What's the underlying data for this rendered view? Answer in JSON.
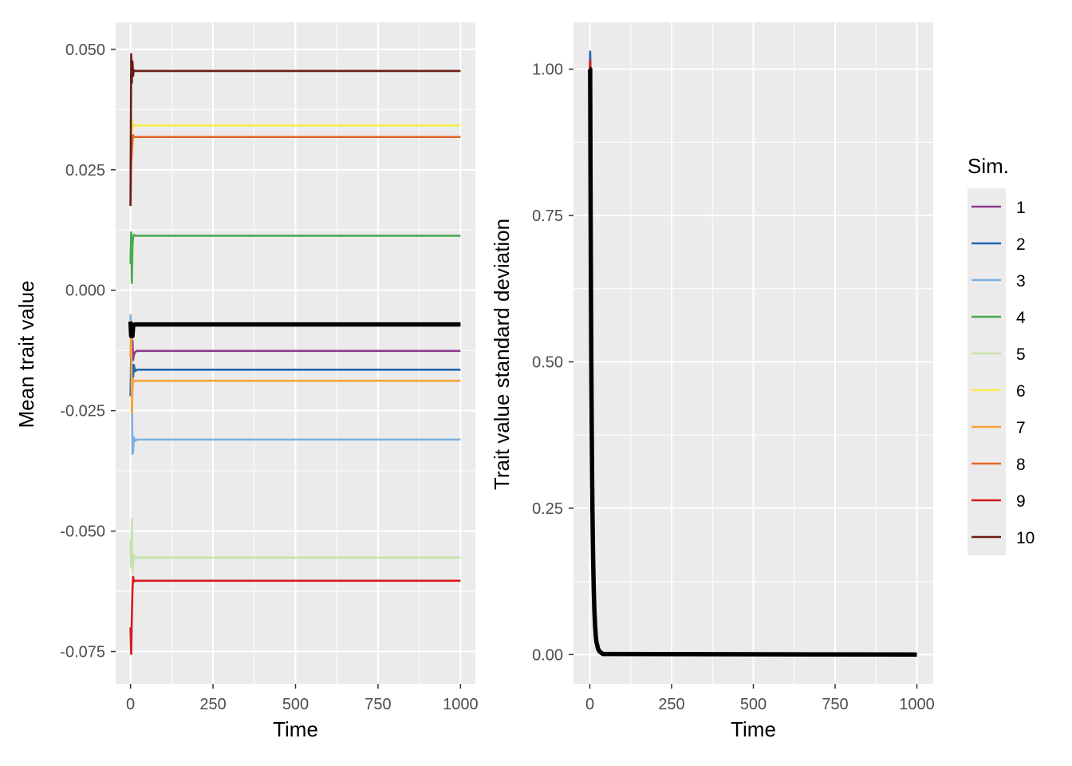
{
  "chart_data": [
    {
      "type": "line",
      "title": "",
      "xlabel": "Time",
      "ylabel": "Mean trait value",
      "xlim": [
        -45,
        1045
      ],
      "ylim": [
        -0.0817,
        0.0556
      ],
      "xticks": [
        0,
        250,
        500,
        750,
        1000
      ],
      "xtick_labels": [
        "0",
        "250",
        "500",
        "750",
        "1000"
      ],
      "yticks": [
        -0.075,
        -0.05,
        -0.025,
        0.0,
        0.025,
        0.05
      ],
      "ytick_labels": [
        "-0.075",
        "-0.050",
        "-0.025",
        "0.000",
        "0.025",
        "0.050"
      ],
      "grid": true,
      "series": [
        {
          "name": "1",
          "color": "#8E3A8C",
          "x": [
            0,
            2,
            4,
            6,
            8,
            10,
            14,
            20,
            1000
          ],
          "values": [
            -0.0085,
            -0.0065,
            -0.011,
            -0.0105,
            -0.0145,
            -0.0135,
            -0.0128,
            -0.0126,
            -0.0126
          ]
        },
        {
          "name": "2",
          "color": "#1F66B0",
          "x": [
            0,
            2,
            4,
            6,
            8,
            10,
            14,
            20,
            1000
          ],
          "values": [
            -0.022,
            -0.0135,
            -0.018,
            -0.0155,
            -0.018,
            -0.0155,
            -0.0168,
            -0.0165,
            -0.0165
          ]
        },
        {
          "name": "3",
          "color": "#7EAFE0",
          "x": [
            0,
            2,
            4,
            6,
            8,
            10,
            14,
            20,
            1000
          ],
          "values": [
            -0.005,
            -0.0095,
            -0.0205,
            -0.034,
            -0.0335,
            -0.0305,
            -0.0313,
            -0.031,
            -0.031
          ]
        },
        {
          "name": "4",
          "color": "#4AA951",
          "x": [
            0,
            2,
            4,
            6,
            8,
            10,
            14,
            20,
            1000
          ],
          "values": [
            0.0055,
            0.012,
            0.0015,
            0.0095,
            0.011,
            0.0115,
            0.0113,
            0.0113,
            0.0113
          ]
        },
        {
          "name": "5",
          "color": "#C7E2A9",
          "x": [
            0,
            2,
            4,
            6,
            8,
            10,
            14,
            20,
            1000
          ],
          "values": [
            -0.052,
            -0.0575,
            -0.0475,
            -0.0585,
            -0.0565,
            -0.055,
            -0.0556,
            -0.0555,
            -0.0555
          ]
        },
        {
          "name": "6",
          "color": "#F6EC4E",
          "x": [
            0,
            2,
            4,
            6,
            8,
            10,
            14,
            20,
            1000
          ],
          "values": [
            0.032,
            0.0295,
            0.0355,
            0.0335,
            0.0345,
            0.0342,
            0.0342,
            0.0342,
            0.0342
          ]
        },
        {
          "name": "7",
          "color": "#F6A23E",
          "x": [
            0,
            2,
            4,
            6,
            8,
            10,
            14,
            20,
            1000
          ],
          "values": [
            -0.014,
            -0.0075,
            -0.0255,
            -0.0205,
            -0.0185,
            -0.019,
            -0.0188,
            -0.0188,
            -0.0188
          ]
        },
        {
          "name": "8",
          "color": "#E3672B",
          "x": [
            0,
            2,
            4,
            6,
            8,
            10,
            14,
            20,
            1000
          ],
          "values": [
            0.0175,
            0.0265,
            0.0285,
            0.031,
            0.0322,
            0.0318,
            0.0318,
            0.0318,
            0.0318
          ]
        },
        {
          "name": "9",
          "color": "#D7191C",
          "x": [
            0,
            2,
            4,
            6,
            8,
            10,
            14,
            20,
            1000
          ],
          "values": [
            -0.07,
            -0.0755,
            -0.068,
            -0.062,
            -0.0595,
            -0.0605,
            -0.0603,
            -0.0603,
            -0.0603
          ]
        },
        {
          "name": "10",
          "color": "#6B1C15",
          "x": [
            0,
            2,
            4,
            6,
            8,
            10,
            14,
            20,
            1000
          ],
          "values": [
            0.0175,
            0.049,
            0.043,
            0.0475,
            0.0445,
            0.0457,
            0.0455,
            0.0455,
            0.0455
          ]
        },
        {
          "color": "#000000",
          "thick": true,
          "x": [
            0,
            2,
            4,
            6,
            8,
            10,
            14,
            20,
            1000
          ],
          "values": [
            -0.0065,
            -0.0095,
            -0.0075,
            -0.0095,
            -0.0075,
            -0.0072,
            -0.0071,
            -0.0071,
            -0.0071
          ]
        }
      ]
    },
    {
      "type": "line",
      "title": "",
      "xlabel": "Time",
      "ylabel": "Trait value standard deviation",
      "xlim": [
        -50,
        1050
      ],
      "ylim": [
        -0.05,
        1.08
      ],
      "xticks": [
        0,
        250,
        500,
        750,
        1000
      ],
      "xtick_labels": [
        "0",
        "250",
        "500",
        "750",
        "1000"
      ],
      "yticks": [
        0.0,
        0.25,
        0.5,
        0.75,
        1.0
      ],
      "ytick_labels": [
        "0.00",
        "0.25",
        "0.50",
        "0.75",
        "1.00"
      ],
      "grid": true,
      "series": [
        {
          "name": "2",
          "color": "#1F66B0",
          "x": [
            0,
            1,
            2
          ],
          "values": [
            1.0,
            1.03,
            1.0
          ]
        },
        {
          "name": "9",
          "color": "#D7191C",
          "x": [
            0,
            1,
            2
          ],
          "values": [
            1.0,
            1.015,
            1.0
          ]
        },
        {
          "color": "#000000",
          "thick": true,
          "x": [
            0,
            1,
            2,
            3,
            4,
            5,
            6,
            7,
            8,
            9,
            10,
            12,
            14,
            16,
            18,
            20,
            25,
            30,
            40,
            1000
          ],
          "values": [
            1.0,
            1.0,
            0.82,
            0.68,
            0.55,
            0.45,
            0.37,
            0.3,
            0.245,
            0.2,
            0.165,
            0.11,
            0.074,
            0.05,
            0.033,
            0.022,
            0.01,
            0.005,
            0.001,
            0.0
          ]
        }
      ]
    }
  ],
  "legend": {
    "title": "Sim.",
    "placement": "right",
    "items": [
      {
        "label": "1",
        "color": "#8E3A8C"
      },
      {
        "label": "2",
        "color": "#1F66B0"
      },
      {
        "label": "3",
        "color": "#7EAFE0"
      },
      {
        "label": "4",
        "color": "#4AA951"
      },
      {
        "label": "5",
        "color": "#C7E2A9"
      },
      {
        "label": "6",
        "color": "#F6EC4E"
      },
      {
        "label": "7",
        "color": "#F6A23E"
      },
      {
        "label": "8",
        "color": "#E3672B"
      },
      {
        "label": "9",
        "color": "#D7191C"
      },
      {
        "label": "10",
        "color": "#6B1C15"
      }
    ]
  },
  "colors": {
    "panel_background": "#EBEBEB",
    "grid_major": "#FFFFFF",
    "tick_text": "#4D4D4D",
    "axis_title": "#000000"
  }
}
